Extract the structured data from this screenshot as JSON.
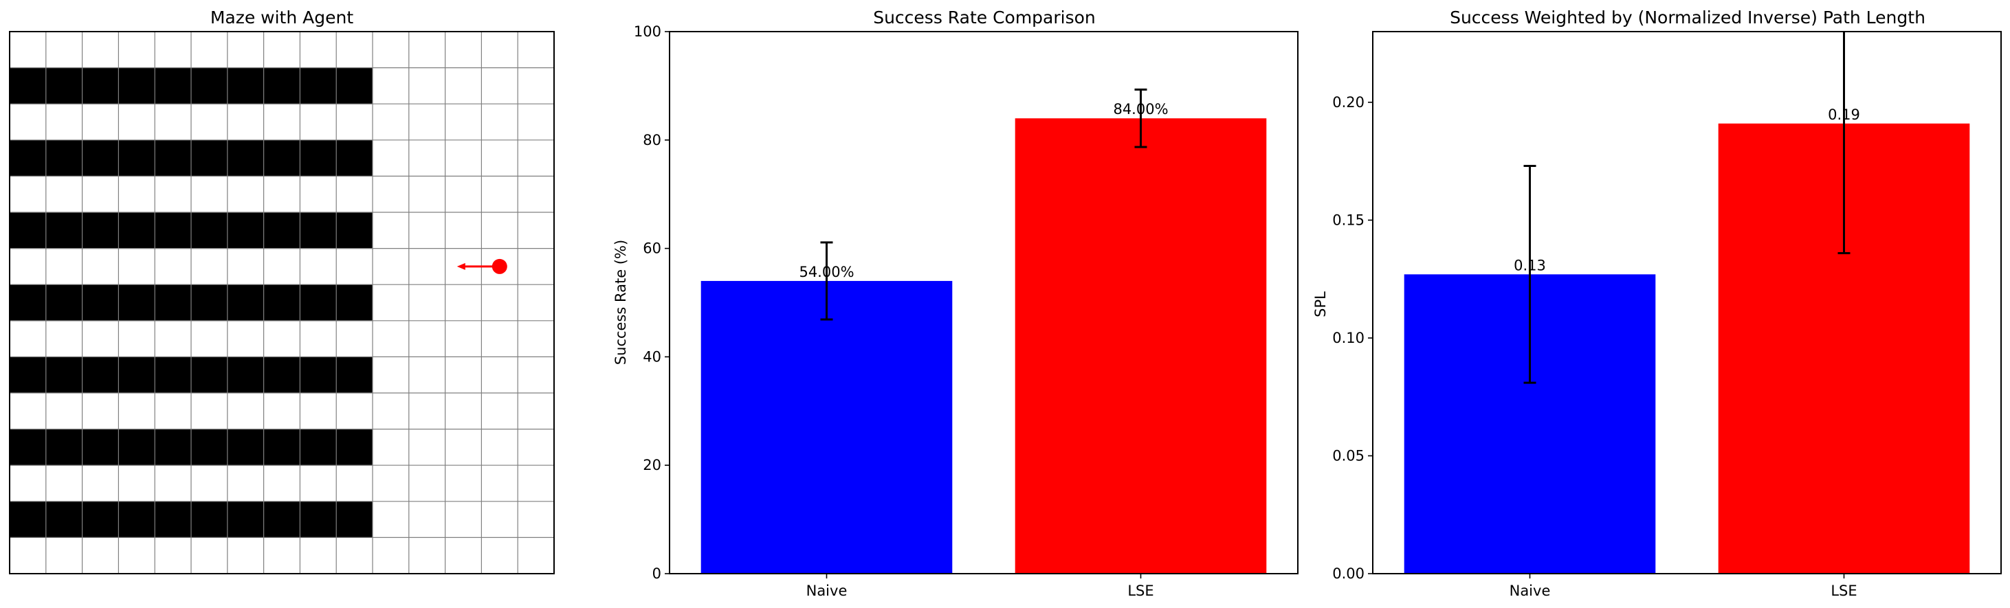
{
  "maze": {
    "title": "Maze with Agent",
    "grid": {
      "rows": 15,
      "cols": 15
    },
    "wall_rows": [
      1,
      3,
      5,
      7,
      9,
      11,
      13
    ],
    "wall_cols": [
      0,
      1,
      2,
      3,
      4,
      5,
      6,
      7,
      8,
      9
    ],
    "agent": {
      "row": 6,
      "col": 13,
      "heading": "left"
    },
    "colors": {
      "wall": "#000000",
      "free": "#ffffff",
      "grid": "#808080",
      "agent": "#ff0000"
    }
  },
  "chart_data": [
    {
      "type": "bar",
      "title": "Success Rate Comparison",
      "xlabel": "",
      "ylabel": "Success Rate (%)",
      "categories": [
        "Naive",
        "LSE"
      ],
      "values": [
        54.0,
        84.0
      ],
      "errors": [
        7.1,
        5.3
      ],
      "value_labels": [
        "54.00%",
        "84.00%"
      ],
      "ylim": [
        0,
        100
      ],
      "yticks": [
        0,
        20,
        40,
        60,
        80,
        100
      ],
      "ytick_labels": [
        "0",
        "20",
        "40",
        "60",
        "80",
        "100"
      ],
      "colors": [
        "#0000ff",
        "#ff0000"
      ],
      "grid": false
    },
    {
      "type": "bar",
      "title": "Success Weighted by (Normalized Inverse) Path Length",
      "xlabel": "",
      "ylabel": "SPL",
      "categories": [
        "Naive",
        "LSE"
      ],
      "values": [
        0.127,
        0.191
      ],
      "errors": [
        0.046,
        0.055
      ],
      "value_labels": [
        "0.13",
        "0.19"
      ],
      "ylim": [
        0,
        0.23
      ],
      "yticks": [
        0,
        0.05,
        0.1,
        0.15,
        0.2
      ],
      "ytick_labels": [
        "0.00",
        "0.05",
        "0.10",
        "0.15",
        "0.20"
      ],
      "colors": [
        "#0000ff",
        "#ff0000"
      ],
      "grid": false
    }
  ]
}
